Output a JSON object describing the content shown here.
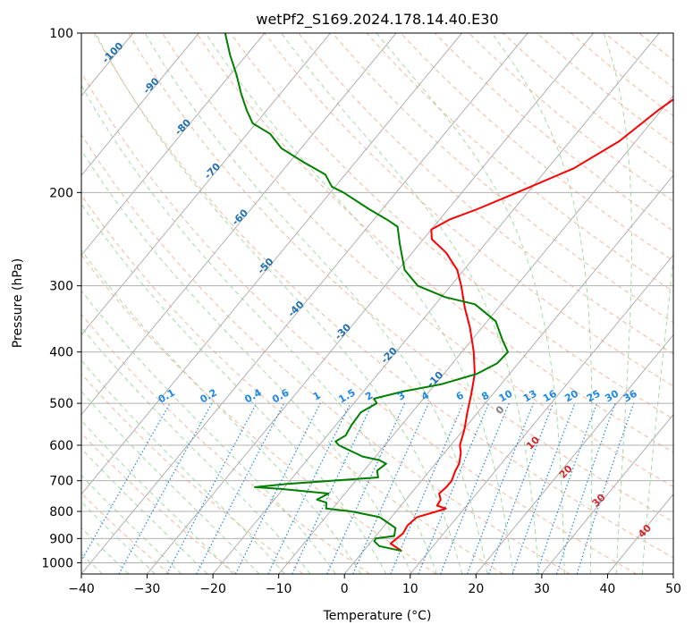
{
  "chart_data": {
    "type": "skew-t",
    "title": "wetPf2_S169.2024.178.14.40.E30",
    "xlabel": "Temperature (°C)",
    "ylabel": "Pressure (hPa)",
    "xlim": [
      -40,
      50
    ],
    "ylim": [
      1050,
      100
    ],
    "y_scale": "log",
    "grid": true,
    "x_ticks": [
      "−40",
      "−30",
      "−20",
      "−10",
      "0",
      "10",
      "20",
      "30",
      "40",
      "50"
    ],
    "y_ticks": [
      "100",
      "200",
      "300",
      "400",
      "500",
      "600",
      "700",
      "800",
      "900",
      "1000"
    ],
    "isotherm_labels": [
      "-100",
      "-90",
      "-80",
      "-70",
      "-60",
      "-50",
      "-40",
      "-30",
      "-20",
      "-10"
    ],
    "mixing_ratio_labels": [
      "0.1",
      "0.2",
      "0.4",
      "0.6",
      "1",
      "1.5",
      "2",
      "3",
      "4",
      "6",
      "8",
      "10",
      "13",
      "16",
      "20",
      "25",
      "30",
      "36"
    ],
    "moist_adiabat_labels": [
      "0",
      "10",
      "20",
      "30",
      "40"
    ],
    "colors": {
      "temperature": "#ff0000",
      "dewpoint": "#008000",
      "isotherm_label": "#1f6fb4",
      "mixing_ratio": "#1e88e5",
      "dry_adiabat": "#f4a582",
      "moist_adiabat": "#8fd18f",
      "moist_adiabat_label": "#d62728",
      "grid": "#b0b0b0"
    },
    "series": [
      {
        "name": "",
        "role": "temperature",
        "points": [
          [
            950,
            5.8
          ],
          [
            920,
            3.2
          ],
          [
            900,
            3.5
          ],
          [
            880,
            3.8
          ],
          [
            850,
            3.5
          ],
          [
            820,
            3.9
          ],
          [
            800,
            6.2
          ],
          [
            790,
            7.2
          ],
          [
            780,
            5.5
          ],
          [
            760,
            5.3
          ],
          [
            740,
            4.3
          ],
          [
            720,
            4.6
          ],
          [
            700,
            4.6
          ],
          [
            670,
            3.9
          ],
          [
            650,
            3.6
          ],
          [
            620,
            2.5
          ],
          [
            600,
            1.4
          ],
          [
            560,
            0.1
          ],
          [
            520,
            -1.6
          ],
          [
            480,
            -3.3
          ],
          [
            440,
            -5.3
          ],
          [
            400,
            -8.2
          ],
          [
            360,
            -11.8
          ],
          [
            330,
            -15.1
          ],
          [
            300,
            -18.4
          ],
          [
            280,
            -21.0
          ],
          [
            260,
            -24.8
          ],
          [
            245,
            -28.7
          ],
          [
            235,
            -30.0
          ],
          [
            225,
            -28.5
          ],
          [
            215,
            -25.6
          ],
          [
            200,
            -21.6
          ],
          [
            180,
            -16.0
          ],
          [
            160,
            -12.5
          ],
          [
            140,
            -10.5
          ],
          [
            130,
            -9.0
          ],
          [
            120,
            -6.5
          ],
          [
            100,
            -3.0
          ]
        ]
      },
      {
        "name": "",
        "role": "dewpoint",
        "points": [
          [
            950,
            5.8
          ],
          [
            930,
            1.8
          ],
          [
            910,
            0.4
          ],
          [
            900,
            0.3
          ],
          [
            890,
            2.8
          ],
          [
            860,
            2.0
          ],
          [
            830,
            -0.8
          ],
          [
            820,
            -1.8
          ],
          [
            800,
            -6.8
          ],
          [
            790,
            -11.0
          ],
          [
            770,
            -11.7
          ],
          [
            760,
            -13.5
          ],
          [
            740,
            -12.5
          ],
          [
            725,
            -20.5
          ],
          [
            720,
            -24.5
          ],
          [
            710,
            -20.0
          ],
          [
            690,
            -7.0
          ],
          [
            670,
            -8.0
          ],
          [
            650,
            -7.5
          ],
          [
            640,
            -9.0
          ],
          [
            630,
            -12.0
          ],
          [
            600,
            -17.0
          ],
          [
            590,
            -18.0
          ],
          [
            575,
            -17.2
          ],
          [
            550,
            -17.6
          ],
          [
            520,
            -17.8
          ],
          [
            500,
            -16.5
          ],
          [
            490,
            -17.5
          ],
          [
            475,
            -14.0
          ],
          [
            460,
            -9.0
          ],
          [
            440,
            -5.0
          ],
          [
            420,
            -3.2
          ],
          [
            400,
            -3.0
          ],
          [
            380,
            -5.3
          ],
          [
            350,
            -8.7
          ],
          [
            325,
            -14.0
          ],
          [
            315,
            -19.5
          ],
          [
            300,
            -25.0
          ],
          [
            280,
            -29.0
          ],
          [
            250,
            -33.0
          ],
          [
            232,
            -35.5
          ],
          [
            225,
            -38.0
          ],
          [
            215,
            -42.0
          ],
          [
            200,
            -48.0
          ],
          [
            195,
            -50.5
          ],
          [
            185,
            -53.0
          ],
          [
            175,
            -58.0
          ],
          [
            165,
            -63.0
          ],
          [
            155,
            -66.5
          ],
          [
            148,
            -70.5
          ],
          [
            140,
            -73.0
          ],
          [
            130,
            -76.0
          ],
          [
            120,
            -79.0
          ],
          [
            110,
            -82.5
          ],
          [
            100,
            -86.0
          ]
        ]
      }
    ]
  }
}
